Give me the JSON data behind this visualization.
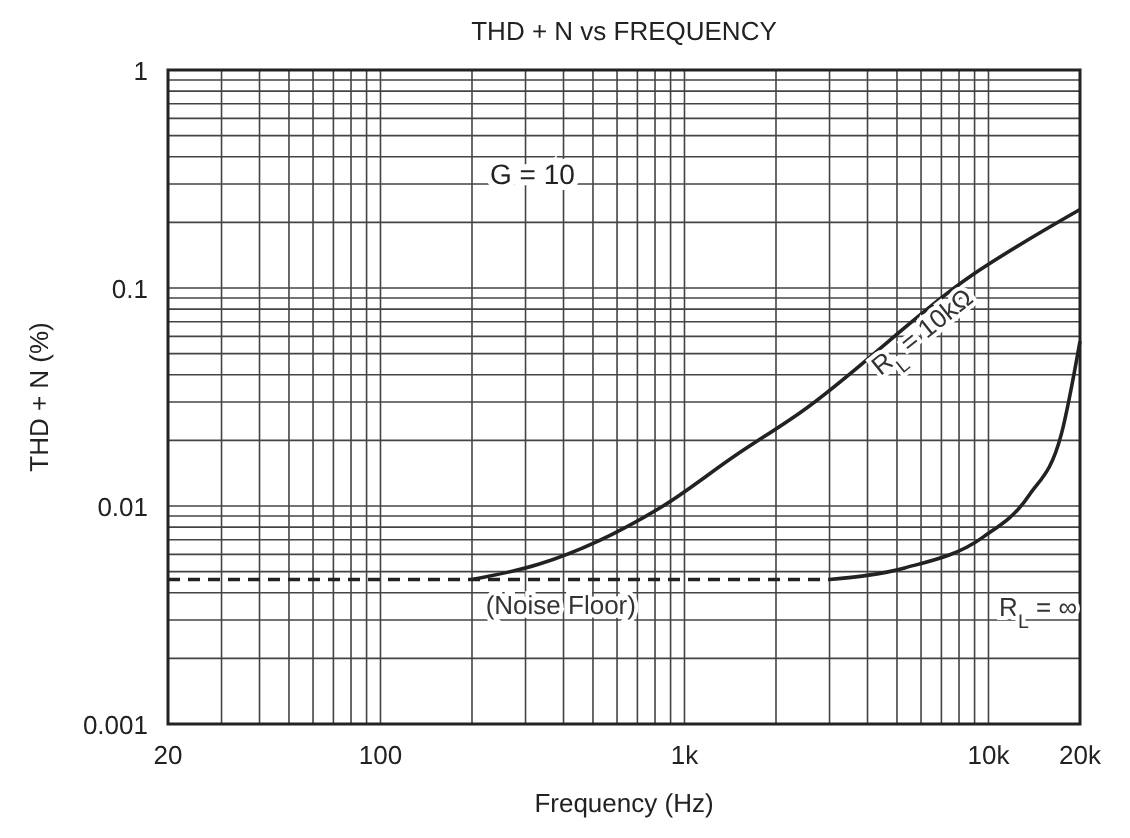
{
  "chart_data": {
    "type": "line",
    "title": "THD + N vs FREQUENCY",
    "xlabel": "Frequency (Hz)",
    "ylabel": "THD + N (%)",
    "log": "xy",
    "grid": true,
    "xlim": [
      20,
      20000
    ],
    "ylim": [
      0.001,
      1
    ],
    "xticks": [
      20,
      {
        "value": 30,
        "label": null
      },
      {
        "value": 40,
        "label": null
      },
      {
        "value": 50,
        "label": null
      },
      {
        "value": 60,
        "label": null
      },
      {
        "value": 70,
        "label": null
      },
      {
        "value": 80,
        "label": null
      },
      {
        "value": 90,
        "label": null
      },
      100,
      {
        "value": 200,
        "label": null
      },
      {
        "value": 300,
        "label": null
      },
      {
        "value": 400,
        "label": null
      },
      {
        "value": 500,
        "label": null
      },
      {
        "value": 600,
        "label": null
      },
      {
        "value": 700,
        "label": null
      },
      {
        "value": 800,
        "label": null
      },
      {
        "value": 900,
        "label": null
      },
      {
        "value": 1000,
        "label": "1k"
      },
      {
        "value": 2000,
        "label": null
      },
      {
        "value": 3000,
        "label": null
      },
      {
        "value": 4000,
        "label": null
      },
      {
        "value": 5000,
        "label": null
      },
      {
        "value": 6000,
        "label": null
      },
      {
        "value": 7000,
        "label": null
      },
      {
        "value": 8000,
        "label": null
      },
      {
        "value": 9000,
        "label": null
      },
      {
        "value": 10000,
        "label": "10k"
      },
      {
        "value": 20000,
        "label": "20k"
      }
    ],
    "yticks": [
      0.001,
      {
        "value": 0.002,
        "label": null
      },
      {
        "value": 0.003,
        "label": null
      },
      {
        "value": 0.004,
        "label": null
      },
      {
        "value": 0.005,
        "label": null
      },
      {
        "value": 0.006,
        "label": null
      },
      {
        "value": 0.007,
        "label": null
      },
      {
        "value": 0.008,
        "label": null
      },
      {
        "value": 0.009,
        "label": null
      },
      0.01,
      {
        "value": 0.02,
        "label": null
      },
      {
        "value": 0.03,
        "label": null
      },
      {
        "value": 0.04,
        "label": null
      },
      {
        "value": 0.05,
        "label": null
      },
      {
        "value": 0.06,
        "label": null
      },
      {
        "value": 0.07,
        "label": null
      },
      {
        "value": 0.08,
        "label": null
      },
      {
        "value": 0.09,
        "label": null
      },
      0.1,
      {
        "value": 0.2,
        "label": null
      },
      {
        "value": 0.3,
        "label": null
      },
      {
        "value": 0.4,
        "label": null
      },
      {
        "value": 0.5,
        "label": null
      },
      {
        "value": 0.6,
        "label": null
      },
      {
        "value": 0.7,
        "label": null
      },
      {
        "value": 0.8,
        "label": null
      },
      {
        "value": 0.9,
        "label": null
      },
      1
    ],
    "annotations": [
      "G = 10"
    ],
    "series": [
      {
        "name": "(Noise Floor)",
        "color": "#222222",
        "line_style": "dashed",
        "x": [
          20,
          3000
        ],
        "values": [
          0.0046,
          0.0046
        ]
      },
      {
        "name": "R$_{L}$ = 10kΩ",
        "color": "#222222",
        "line_style": "solid",
        "x": [
          200,
          331,
          850,
          1466,
          2400,
          8700,
          20000
        ],
        "values": [
          0.0046,
          0.0054,
          0.01,
          0.017,
          0.0268,
          0.113,
          0.229
        ]
      },
      {
        "name": "R$_{L}$ = ∞",
        "color": "#222222",
        "line_style": "solid",
        "x": [
          3000,
          5300,
          9600,
          13600,
          17400,
          20000
        ],
        "values": [
          0.0046,
          0.0052,
          0.0072,
          0.0112,
          0.0216,
          0.057
        ]
      }
    ]
  }
}
